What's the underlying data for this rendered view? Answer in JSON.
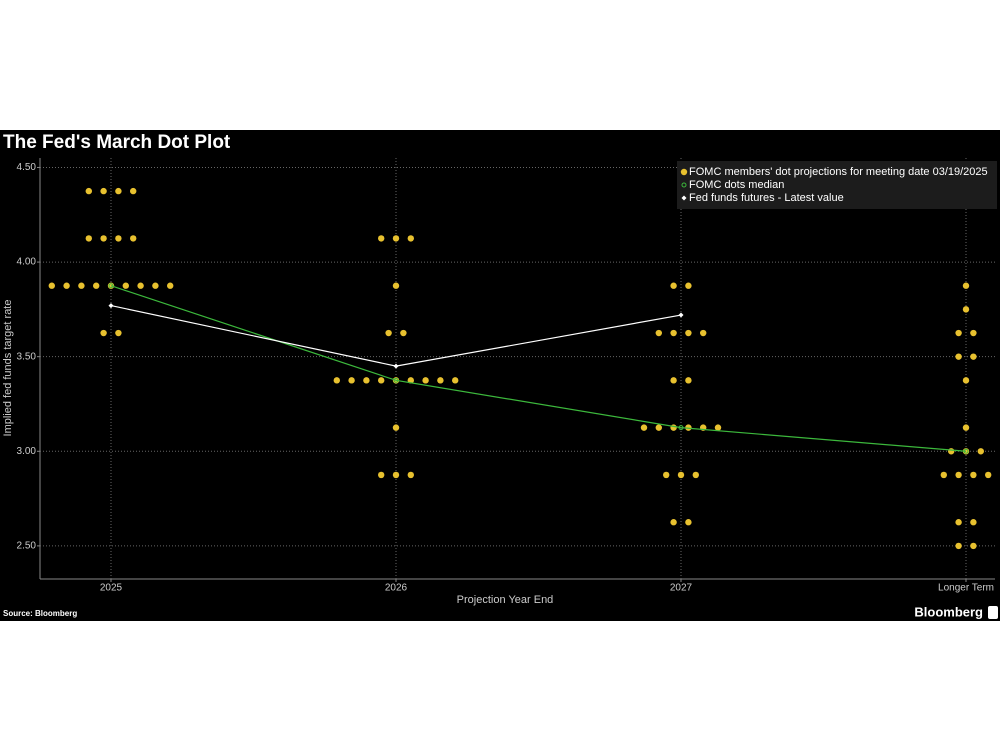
{
  "chart_data": {
    "type": "dot-plot",
    "title": "The Fed's March Dot Plot",
    "x_label": "Projection Year End",
    "y_label": "Implied fed funds target rate",
    "source": "Source: Bloomberg",
    "brand": "Bloomberg",
    "categories": [
      "2025",
      "2026",
      "2027",
      "Longer Term"
    ],
    "ylim": [
      2.325,
      4.55
    ],
    "yticks": [
      {
        "value": 2.5,
        "label": "2.50"
      },
      {
        "value": 3.0,
        "label": "3.00"
      },
      {
        "value": 3.5,
        "label": "3.50"
      },
      {
        "value": 4.0,
        "label": "4.00"
      },
      {
        "value": 4.5,
        "label": "4.50"
      }
    ],
    "grid": true,
    "legend": "top-right",
    "series": [
      {
        "name": "FOMC members' dot projections for meeting date 03/19/2025",
        "color": "#e8c12f",
        "kind": "dots",
        "values": [
          [
            4.375,
            4.375,
            4.375,
            4.375,
            4.125,
            4.125,
            4.125,
            4.125,
            3.875,
            3.875,
            3.875,
            3.875,
            3.875,
            3.875,
            3.875,
            3.875,
            3.875,
            3.625,
            3.625
          ],
          [
            4.125,
            4.125,
            4.125,
            3.875,
            3.625,
            3.625,
            3.375,
            3.375,
            3.375,
            3.375,
            3.375,
            3.375,
            3.375,
            3.375,
            3.375,
            3.125,
            2.875,
            2.875,
            2.875
          ],
          [
            3.875,
            3.875,
            3.625,
            3.625,
            3.625,
            3.625,
            3.375,
            3.375,
            3.125,
            3.125,
            3.125,
            3.125,
            3.125,
            3.125,
            2.875,
            2.875,
            2.875,
            2.625,
            2.625
          ],
          [
            3.875,
            3.75,
            3.625,
            3.625,
            3.5,
            3.5,
            3.375,
            3.125,
            3.0,
            3.0,
            3.0,
            2.875,
            2.875,
            2.875,
            2.875,
            2.625,
            2.625,
            2.5,
            2.5
          ]
        ]
      },
      {
        "name": "FOMC dots median",
        "color": "#3cb83c",
        "kind": "line",
        "values": [
          3.875,
          3.375,
          3.125,
          3.0
        ]
      },
      {
        "name": "Fed funds futures - Latest value",
        "color": "#ffffff",
        "kind": "line",
        "values": [
          3.77,
          3.45,
          3.72,
          null
        ]
      }
    ]
  }
}
